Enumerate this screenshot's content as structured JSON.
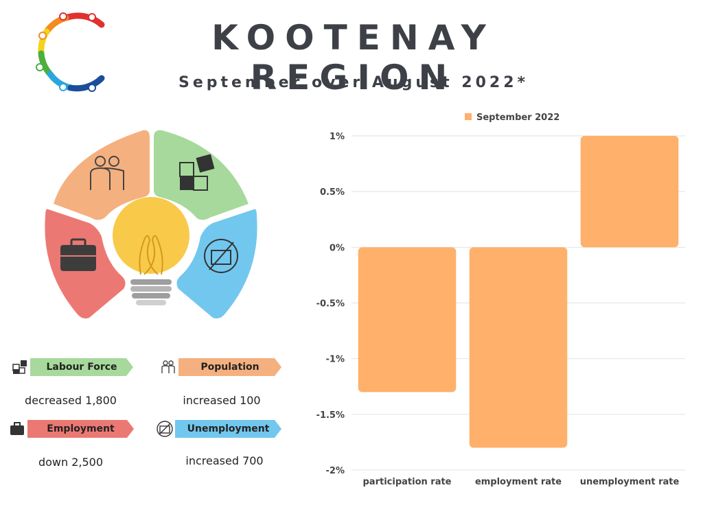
{
  "header": {
    "title": "KOOTENAY REGION",
    "subtitle": "September over August 2022*"
  },
  "colors": {
    "title": "#3d4047",
    "bar": "#ffb06a",
    "labour_force": "#a6d99b",
    "population": "#f5b07f",
    "employment": "#ec7873",
    "unemployment": "#72c7ee"
  },
  "indicators": [
    {
      "label": "Labour Force",
      "text": "decreased 1,800",
      "icon": "puzzle-icon"
    },
    {
      "label": "Population",
      "text": "increased 100",
      "icon": "people-icon"
    },
    {
      "label": "Employment",
      "text": "down 2,500",
      "icon": "briefcase-icon"
    },
    {
      "label": "Unemployment",
      "text": "increased 700",
      "icon": "no-briefcase-icon"
    }
  ],
  "chart_data": {
    "type": "bar",
    "categories": [
      "participation rate",
      "employment rate",
      "unemployment rate"
    ],
    "series": [
      {
        "name": "September 2022",
        "values": [
          -1.3,
          -1.8,
          1.0
        ]
      }
    ],
    "ylim": [
      -2,
      1
    ],
    "yticks": [
      "1%",
      "0.5%",
      "0%",
      "-0.5%",
      "-1%",
      "-1.5%",
      "-2%"
    ],
    "grid": true,
    "legend": "top"
  }
}
